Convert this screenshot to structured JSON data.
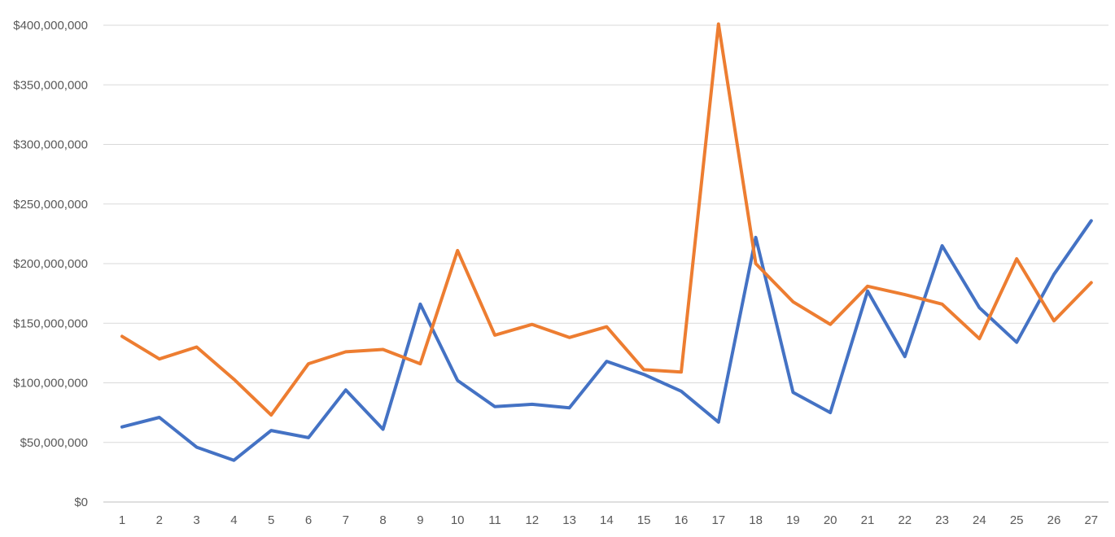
{
  "chart_data": {
    "type": "line",
    "title": "",
    "xlabel": "",
    "ylabel": "",
    "categories": [
      "1",
      "2",
      "3",
      "4",
      "5",
      "6",
      "7",
      "8",
      "9",
      "10",
      "11",
      "12",
      "13",
      "14",
      "15",
      "16",
      "17",
      "18",
      "19",
      "20",
      "21",
      "22",
      "23",
      "24",
      "25",
      "26",
      "27"
    ],
    "y_ticks": [
      "$0",
      "$50,000,000",
      "$100,000,000",
      "$150,000,000",
      "$200,000,000",
      "$250,000,000",
      "$300,000,000",
      "$350,000,000",
      "$400,000,000"
    ],
    "ylim": [
      0,
      400000000
    ],
    "grid": true,
    "legend": "none",
    "series": [
      {
        "color": "#4472c4",
        "values": [
          63000000,
          71000000,
          46000000,
          35000000,
          60000000,
          54000000,
          94000000,
          61000000,
          166000000,
          102000000,
          80000000,
          82000000,
          79000000,
          118000000,
          107000000,
          93000000,
          67000000,
          222000000,
          92000000,
          75000000,
          177000000,
          122000000,
          215000000,
          163000000,
          134000000,
          191000000,
          236000000
        ]
      },
      {
        "color": "#ed7d31",
        "values": [
          139000000,
          120000000,
          130000000,
          103000000,
          73000000,
          116000000,
          126000000,
          128000000,
          116000000,
          211000000,
          140000000,
          149000000,
          138000000,
          147000000,
          111000000,
          109000000,
          401000000,
          200000000,
          168000000,
          149000000,
          181000000,
          174000000,
          166000000,
          137000000,
          204000000,
          152000000,
          184000000
        ]
      }
    ]
  }
}
